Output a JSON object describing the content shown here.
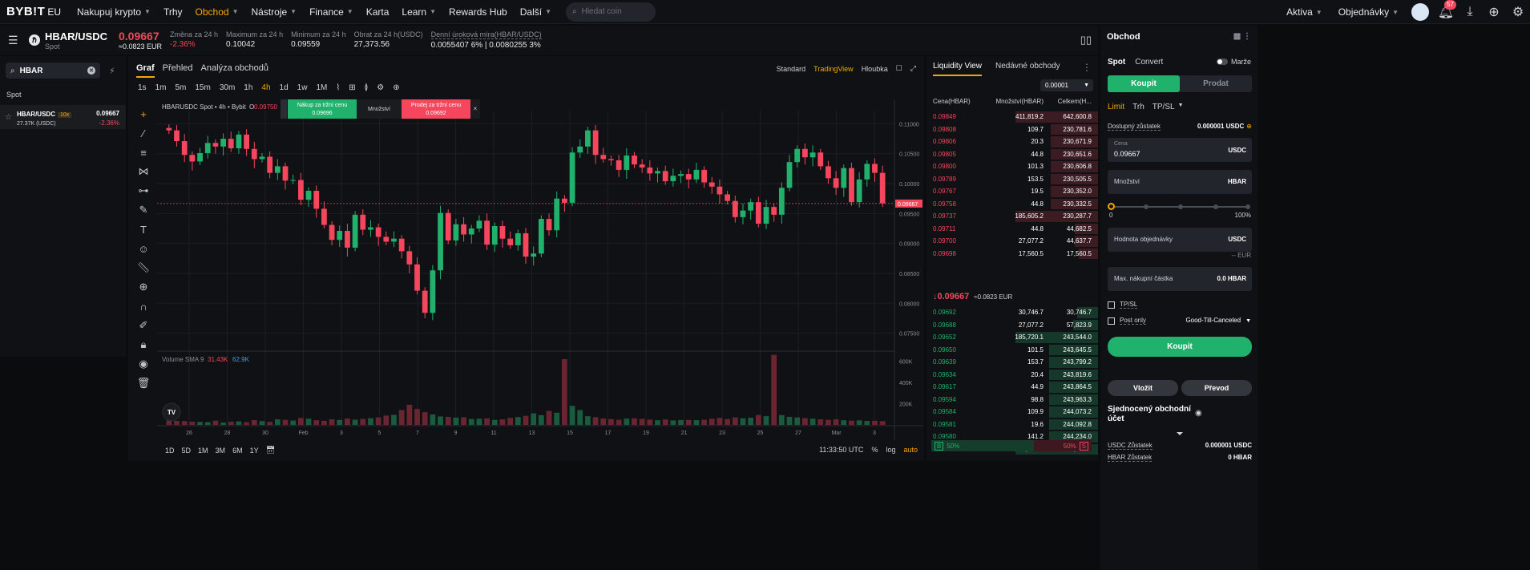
{
  "nav": {
    "logo_main": "BYB!T",
    "logo_sub": "EU",
    "items": [
      {
        "label": "Nakupuj krypto",
        "caret": true
      },
      {
        "label": "Trhy",
        "caret": false
      },
      {
        "label": "Obchod",
        "caret": true,
        "active": true
      },
      {
        "label": "Nástroje",
        "caret": true
      },
      {
        "label": "Finance",
        "caret": true
      },
      {
        "label": "Karta",
        "caret": false
      },
      {
        "label": "Learn",
        "caret": true
      },
      {
        "label": "Rewards Hub",
        "caret": false
      },
      {
        "label": "Další",
        "caret": true
      }
    ],
    "search_placeholder": "Hledat coin",
    "assets": "Aktiva",
    "orders": "Objednávky",
    "notif_count": "57"
  },
  "ticker": {
    "pair": "HBAR/USDC",
    "type": "Spot",
    "price": "0.09667",
    "price_eur": "≈0.0823 EUR",
    "stats": [
      {
        "label": "Změna za 24 h",
        "value": "-2.36%",
        "red": true
      },
      {
        "label": "Maximum za 24 h",
        "value": "0.10042"
      },
      {
        "label": "Minimum za 24 h",
        "value": "0.09559"
      },
      {
        "label": "Obrat za 24 h(USDC)",
        "value": "27,373.56"
      },
      {
        "label": "Denní úroková míra(HBAR/USDC)",
        "value": "0.0055407 6% | 0.0080255 3%"
      }
    ]
  },
  "left": {
    "search_value": "HBAR",
    "section": "Spot",
    "row": {
      "name": "HBAR/USDC",
      "leverage": "10x",
      "volume": "27.37K (USDC)",
      "price": "0.09667",
      "change": "-2.36%"
    }
  },
  "chart": {
    "tabs": [
      "Graf",
      "Přehled",
      "Analýza obchodů"
    ],
    "views": [
      "Standard",
      "TradingView",
      "Hloubka"
    ],
    "active_view": "TradingView",
    "timeframes": [
      "1s",
      "1m",
      "5m",
      "15m",
      "30m",
      "1h",
      "4h",
      "1d",
      "1w",
      "1M"
    ],
    "active_tf": "4h",
    "legend": "HBARUSDC Spot • 4h • Bybit",
    "legend_o": "O",
    "legend_o_val": "0.09750",
    "buy_label": "Nákup za tržní cenu",
    "buy_price": "0.09696",
    "qty_label": "Množství",
    "sell_label": "Prodej za tržní cenu",
    "sell_price": "0.09692",
    "volume_label": "Volume SMA 9",
    "vol_a": "31.43K",
    "vol_b": "62.9K",
    "bottom_tf": [
      "1D",
      "5D",
      "1M",
      "3M",
      "6M",
      "1Y"
    ],
    "time": "11:33:50 UTC",
    "pct": "%",
    "log": "log",
    "auto": "auto",
    "price_tag": "0.09667"
  },
  "chart_data": {
    "type": "candlestick",
    "title": "HBARUSDC Spot • 4h • Bybit",
    "x_ticks": [
      "26",
      "28",
      "30",
      "Feb",
      "3",
      "5",
      "7",
      "9",
      "11",
      "13",
      "15",
      "17",
      "19",
      "21",
      "23",
      "25",
      "27",
      "Mar",
      "3"
    ],
    "y_ticks": [
      "0.11000",
      "0.10500",
      "0.10000",
      "0.09500",
      "0.09000",
      "0.08500",
      "0.08000",
      "0.07500"
    ],
    "ylim": [
      0.0724,
      0.1122
    ],
    "vol_ticks": [
      "600K",
      "400K",
      "200K"
    ],
    "vol_max": 650000,
    "closes": [
      0.1089,
      0.1071,
      0.1048,
      0.1037,
      0.1051,
      0.1068,
      0.1062,
      0.1075,
      0.1059,
      0.1082,
      0.1058,
      0.1041,
      0.1045,
      0.1018,
      0.1029,
      0.1005,
      0.1006,
      0.0973,
      0.0988,
      0.0958,
      0.0931,
      0.0906,
      0.0921,
      0.0893,
      0.0948,
      0.0923,
      0.0927,
      0.0911,
      0.0903,
      0.0908,
      0.0887,
      0.0865,
      0.0821,
      0.0784,
      0.0855,
      0.0951,
      0.0905,
      0.0932,
      0.0915,
      0.0925,
      0.0938,
      0.0898,
      0.0929,
      0.0908,
      0.0897,
      0.0917,
      0.0878,
      0.0883,
      0.0941,
      0.0922,
      0.0975,
      0.0968,
      0.1052,
      0.1062,
      0.1089,
      0.1048,
      0.1041,
      0.1039,
      0.1023,
      0.1047,
      0.1032,
      0.1027,
      0.1017,
      0.1021,
      0.1004,
      0.1013,
      0.1016,
      0.1007,
      0.1023,
      0.1002,
      0.0995,
      0.0982,
      0.0971,
      0.0944,
      0.0955,
      0.0969,
      0.0933,
      0.0961,
      0.0948,
      0.0993,
      0.1036,
      0.1058,
      0.1044,
      0.1052,
      0.1029,
      0.1009,
      0.0993,
      0.1026,
      0.0969,
      0.1007,
      0.1033,
      0.1018,
      0.0967
    ],
    "volumes": [
      42000,
      38000,
      35000,
      30000,
      28000,
      26000,
      40000,
      22000,
      30000,
      33000,
      25000,
      45000,
      36000,
      29000,
      52000,
      48000,
      41000,
      65000,
      58000,
      44000,
      39000,
      53000,
      47000,
      60000,
      49000,
      56000,
      63000,
      71000,
      88000,
      95000,
      140000,
      190000,
      150000,
      120000,
      98000,
      80000,
      76000,
      69000,
      72000,
      55000,
      58000,
      61000,
      47000,
      52000,
      66000,
      74000,
      85000,
      109000,
      92000,
      132000,
      115000,
      620000,
      180000,
      140000,
      82000,
      73000,
      60000,
      54000,
      48000,
      59000,
      62000,
      57000,
      50000,
      44000,
      51000,
      42000,
      46000,
      47000,
      45000,
      49000,
      58000,
      66000,
      55000,
      71000,
      62000,
      68000,
      93000,
      82000,
      660000,
      92000,
      76000,
      70000,
      64000,
      59000,
      53000,
      48000,
      52000,
      44000,
      40000,
      43000,
      37000,
      39000,
      36000
    ]
  },
  "orderbook": {
    "tabs": [
      "Liquidity View",
      "Nedávné obchody"
    ],
    "precision": "0.00001",
    "headers": [
      "Cena(HBAR)",
      "Množství(HBAR)",
      "Celkem(H..."
    ],
    "asks": [
      [
        "0.09849",
        "411,819.2",
        "642,600.8"
      ],
      [
        "0.09808",
        "109.7",
        "230,781.6"
      ],
      [
        "0.09806",
        "20.3",
        "230,671.9"
      ],
      [
        "0.09805",
        "44.8",
        "230,651.6"
      ],
      [
        "0.09800",
        "101.3",
        "230,606.8"
      ],
      [
        "0.09789",
        "153.5",
        "230,505.5"
      ],
      [
        "0.09767",
        "19.5",
        "230,352.0"
      ],
      [
        "0.09758",
        "44.8",
        "230,332.5"
      ],
      [
        "0.09737",
        "185,605.2",
        "230,287.7"
      ],
      [
        "0.09711",
        "44.8",
        "44,682.5"
      ],
      [
        "0.09700",
        "27,077.2",
        "44,637.7"
      ],
      [
        "0.09698",
        "17,560.5",
        "17,560.5"
      ]
    ],
    "mid_price": "0.09667",
    "mid_eur": "≈0.0823 EUR",
    "bids": [
      [
        "0.09692",
        "30,746.7",
        "30,746.7"
      ],
      [
        "0.09688",
        "27,077.2",
        "57,823.9"
      ],
      [
        "0.09652",
        "185,720.1",
        "243,544.0"
      ],
      [
        "0.09650",
        "101.5",
        "243,645.5"
      ],
      [
        "0.09639",
        "153.7",
        "243,799.2"
      ],
      [
        "0.09634",
        "20.4",
        "243,819.6"
      ],
      [
        "0.09617",
        "44.9",
        "243,864.5"
      ],
      [
        "0.09594",
        "98.8",
        "243,963.3"
      ],
      [
        "0.09584",
        "109.9",
        "244,073.2"
      ],
      [
        "0.09581",
        "19.6",
        "244,092.8"
      ],
      [
        "0.09580",
        "141.2",
        "244,234.0"
      ],
      [
        "0.09576",
        "411,819.2",
        "656,053.2"
      ]
    ],
    "buy_ratio": "50%",
    "sell_ratio": "50%"
  },
  "trade": {
    "title": "Obchod",
    "spot": "Spot",
    "convert": "Convert",
    "margin": "Marže",
    "buy": "Koupit",
    "sell": "Prodat",
    "types": [
      "Limit",
      "Trh",
      "TP/SL"
    ],
    "avail_label": "Dostupný zůstatek",
    "avail_value": "0.000001 USDC",
    "price_label": "Cena",
    "price_value": "0.09667",
    "price_unit": "USDC",
    "qty_label": "Množství",
    "qty_unit": "HBAR",
    "sl_min": "0",
    "sl_max": "100%",
    "value_label": "Hodnota objednávky",
    "value_unit": "USDC",
    "eur": "-- EUR",
    "max_label": "Max. nákupní částka",
    "max_value": "0.0 HBAR",
    "tpsl": "TP/SL",
    "postonly": "Post only",
    "gtc": "Good-Till-Canceled",
    "buy_button": "Koupit",
    "deposit": "Vložit",
    "transfer": "Převod",
    "account": "Sjednocený obchodní účet",
    "usdc_label": "USDC Zůstatek",
    "usdc_value": "0.000001 USDC",
    "hbar_label": "HBAR Zůstatek",
    "hbar_value": "0 HBAR"
  }
}
